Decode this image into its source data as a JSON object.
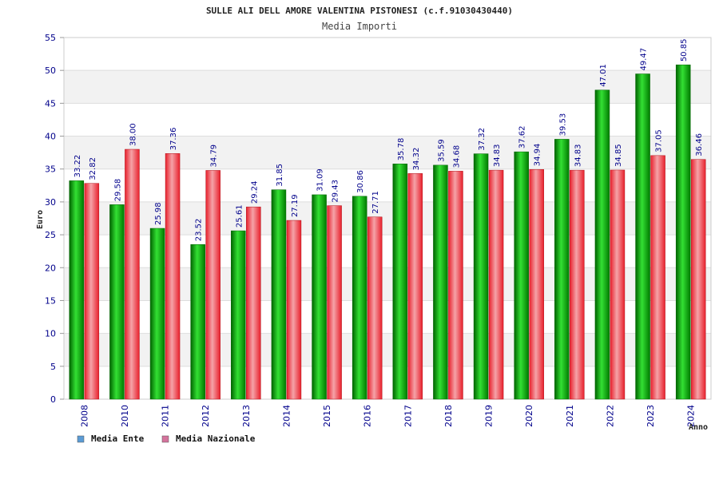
{
  "chart_data": {
    "type": "bar",
    "title": "SULLE ALI DELL AMORE VALENTINA PISTONESI (c.f.91030430440)",
    "subtitle": "Media Importi",
    "ylabel": "Euro",
    "xlabel": "Anno",
    "ylim": [
      0,
      55
    ],
    "yticks": [
      "0",
      "5",
      "10",
      "15",
      "20",
      "25",
      "30",
      "35",
      "40",
      "45",
      "50",
      "55"
    ],
    "categories": [
      "2008",
      "2010",
      "2011",
      "2012",
      "2013",
      "2014",
      "2015",
      "2016",
      "2017",
      "2018",
      "2019",
      "2020",
      "2021",
      "2022",
      "2023",
      "2024"
    ],
    "series": [
      {
        "name": "Media Ente",
        "values": [
          33.22,
          29.58,
          25.98,
          23.52,
          25.61,
          31.85,
          31.09,
          30.86,
          35.78,
          35.59,
          37.32,
          37.62,
          39.53,
          47.01,
          49.47,
          50.85
        ],
        "labels": [
          "33.22",
          "29.58",
          "25.98",
          "23.52",
          "25.61",
          "31.85",
          "31.09",
          "30.86",
          "35.78",
          "35.59",
          "37.32",
          "37.62",
          "39.53",
          "47.01",
          "49.47",
          "50.85"
        ]
      },
      {
        "name": "Media Nazionale",
        "values": [
          32.82,
          38.0,
          37.36,
          34.79,
          29.24,
          27.19,
          29.43,
          27.71,
          34.32,
          34.68,
          34.83,
          34.94,
          34.83,
          34.85,
          37.05,
          36.46
        ],
        "labels": [
          "32.82",
          "38.00",
          "37.36",
          "34.79",
          "29.24",
          "27.19",
          "29.43",
          "27.71",
          "34.32",
          "34.68",
          "34.83",
          "34.94",
          "34.83",
          "34.85",
          "37.05",
          "36.46"
        ]
      }
    ],
    "legend": {
      "position": "bottom-left",
      "items": [
        {
          "label": "Media Ente",
          "swatch_color": "#5b9bd5"
        },
        {
          "label": "Media Nazionale",
          "swatch_color": "#d4739c"
        }
      ]
    },
    "colors": {
      "series_1": "#00a000",
      "series_2": "#e8202c",
      "value_labels": "#00008b",
      "band": "#f2f2f2",
      "grid": "#dddddd"
    },
    "grid": true
  }
}
